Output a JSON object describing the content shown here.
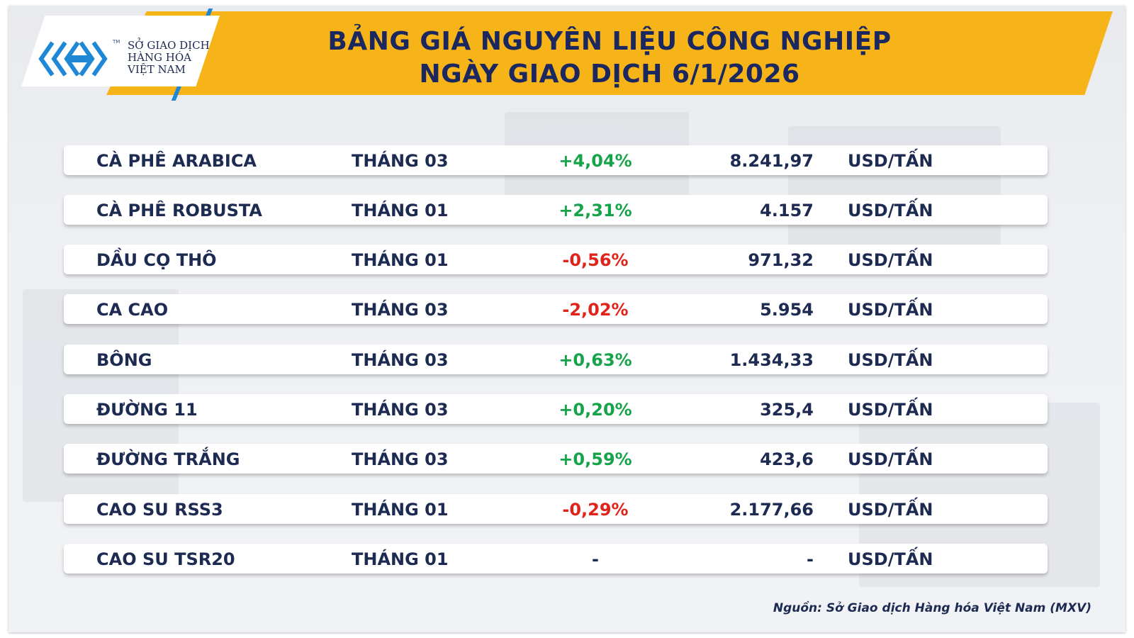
{
  "header": {
    "title_line1": "BẢNG GIÁ NGUYÊN LIỆU CÔNG NGHIỆP",
    "title_line2": "NGÀY GIAO DỊCH 6/1/2026"
  },
  "logo": {
    "line1": "SỞ GIAO DỊCH",
    "line2": "HÀNG HÓA",
    "line3": "VIỆT NAM",
    "tm": "TM",
    "mark_icon": "mxv-chevron-logo-icon"
  },
  "colors": {
    "banner": "#f6b419",
    "navy": "#1d2a52",
    "up": "#17a34a",
    "down": "#e0241b",
    "neutral": "#1d2a52",
    "accent_blue": "#1e88d6"
  },
  "table": {
    "rows": [
      {
        "name": "CÀ PHÊ ARABICA",
        "month": "THÁNG 03",
        "change": "+4,04%",
        "direction": "up",
        "price": "8.241,97",
        "unit": "USD/TẤN"
      },
      {
        "name": "CÀ PHÊ ROBUSTA",
        "month": "THÁNG 01",
        "change": "+2,31%",
        "direction": "up",
        "price": "4.157",
        "unit": "USD/TẤN"
      },
      {
        "name": "DẦU CỌ THÔ",
        "month": "THÁNG 01",
        "change": "-0,56%",
        "direction": "down",
        "price": "971,32",
        "unit": "USD/TẤN"
      },
      {
        "name": "CA CAO",
        "month": "THÁNG 03",
        "change": "-2,02%",
        "direction": "down",
        "price": "5.954",
        "unit": "USD/TẤN"
      },
      {
        "name": "BÔNG",
        "month": "THÁNG 03",
        "change": "+0,63%",
        "direction": "up",
        "price": "1.434,33",
        "unit": "USD/TẤN"
      },
      {
        "name": "ĐƯỜNG 11",
        "month": "THÁNG 03",
        "change": "+0,20%",
        "direction": "up",
        "price": "325,4",
        "unit": "USD/TẤN"
      },
      {
        "name": "ĐƯỜNG TRẮNG",
        "month": "THÁNG 03",
        "change": "+0,59%",
        "direction": "up",
        "price": "423,6",
        "unit": "USD/TẤN"
      },
      {
        "name": "CAO SU RSS3",
        "month": "THÁNG 01",
        "change": "-0,29%",
        "direction": "down",
        "price": "2.177,66",
        "unit": "USD/TẤN"
      },
      {
        "name": "CAO SU TSR20",
        "month": "THÁNG 01",
        "change": "-",
        "direction": "neutral",
        "price": "-",
        "unit": "USD/TẤN"
      }
    ]
  },
  "footer": {
    "source": "Nguồn: Sở Giao dịch Hàng hóa Việt Nam (MXV)"
  }
}
